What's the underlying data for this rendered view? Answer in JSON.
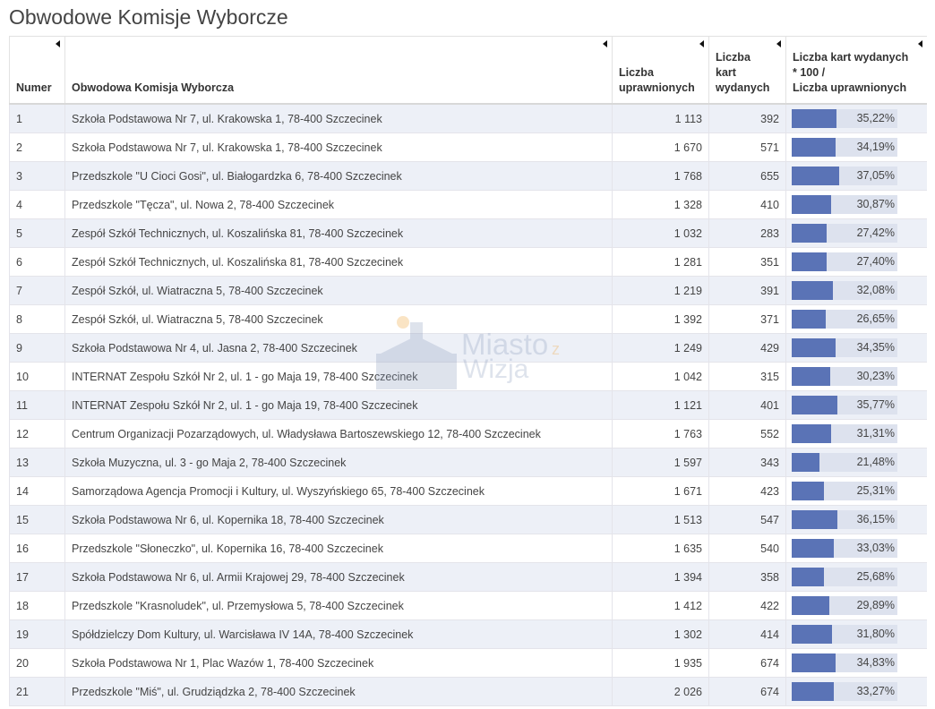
{
  "page": {
    "title": "Obwodowe Komisje Wyborcze"
  },
  "table": {
    "headers": {
      "numer": "Numer",
      "komisja": "Obwodowa Komisja Wyborcza",
      "uprawnionych": [
        "Liczba",
        "uprawnionych"
      ],
      "wydanych": [
        "Liczba",
        "kart",
        "wydanych"
      ],
      "frekwencja": [
        "Liczba kart wydanych",
        "* 100 /",
        "Liczba uprawnionych"
      ]
    },
    "rows": [
      {
        "numer": "1",
        "komisja": "Szkoła Podstawowa Nr 7, ul. Krakowska 1, 78-400 Szczecinek",
        "uprawnionych": "1 113",
        "wydanych": "392",
        "frekwencja": "35,22%",
        "pct": 35.22
      },
      {
        "numer": "2",
        "komisja": "Szkoła Podstawowa Nr 7, ul. Krakowska 1, 78-400 Szczecinek",
        "uprawnionych": "1 670",
        "wydanych": "571",
        "frekwencja": "34,19%",
        "pct": 34.19
      },
      {
        "numer": "3",
        "komisja": "Przedszkole \"U Cioci Gosi\", ul. Białogardzka 6, 78-400 Szczecinek",
        "uprawnionych": "1 768",
        "wydanych": "655",
        "frekwencja": "37,05%",
        "pct": 37.05
      },
      {
        "numer": "4",
        "komisja": "Przedszkole \"Tęcza\", ul. Nowa 2, 78-400 Szczecinek",
        "uprawnionych": "1 328",
        "wydanych": "410",
        "frekwencja": "30,87%",
        "pct": 30.87
      },
      {
        "numer": "5",
        "komisja": "Zespół Szkół Technicznych, ul. Koszalińska 81, 78-400 Szczecinek",
        "uprawnionych": "1 032",
        "wydanych": "283",
        "frekwencja": "27,42%",
        "pct": 27.42
      },
      {
        "numer": "6",
        "komisja": "Zespół Szkół Technicznych, ul. Koszalińska 81, 78-400 Szczecinek",
        "uprawnionych": "1 281",
        "wydanych": "351",
        "frekwencja": "27,40%",
        "pct": 27.4
      },
      {
        "numer": "7",
        "komisja": "Zespół Szkół, ul. Wiatraczna 5, 78-400 Szczecinek",
        "uprawnionych": "1 219",
        "wydanych": "391",
        "frekwencja": "32,08%",
        "pct": 32.08
      },
      {
        "numer": "8",
        "komisja": "Zespół Szkół, ul. Wiatraczna 5, 78-400 Szczecinek",
        "uprawnionych": "1 392",
        "wydanych": "371",
        "frekwencja": "26,65%",
        "pct": 26.65
      },
      {
        "numer": "9",
        "komisja": "Szkoła Podstawowa Nr 4, ul. Jasna 2, 78-400 Szczecinek",
        "uprawnionych": "1 249",
        "wydanych": "429",
        "frekwencja": "34,35%",
        "pct": 34.35
      },
      {
        "numer": "10",
        "komisja": "INTERNAT Zespołu Szkół Nr 2, ul. 1 - go Maja 19, 78-400 Szczecinek",
        "uprawnionych": "1 042",
        "wydanych": "315",
        "frekwencja": "30,23%",
        "pct": 30.23
      },
      {
        "numer": "11",
        "komisja": "INTERNAT Zespołu Szkół Nr 2, ul. 1 - go Maja 19, 78-400 Szczecinek",
        "uprawnionych": "1 121",
        "wydanych": "401",
        "frekwencja": "35,77%",
        "pct": 35.77
      },
      {
        "numer": "12",
        "komisja": "Centrum Organizacji Pozarządowych, ul. Władysława Bartoszewskiego 12, 78-400 Szczecinek",
        "uprawnionych": "1 763",
        "wydanych": "552",
        "frekwencja": "31,31%",
        "pct": 31.31
      },
      {
        "numer": "13",
        "komisja": "Szkoła Muzyczna, ul. 3 - go Maja 2, 78-400 Szczecinek",
        "uprawnionych": "1 597",
        "wydanych": "343",
        "frekwencja": "21,48%",
        "pct": 21.48
      },
      {
        "numer": "14",
        "komisja": "Samorządowa Agencja Promocji i Kultury, ul. Wyszyńskiego 65, 78-400 Szczecinek",
        "uprawnionych": "1 671",
        "wydanych": "423",
        "frekwencja": "25,31%",
        "pct": 25.31
      },
      {
        "numer": "15",
        "komisja": "Szkoła Podstawowa Nr 6, ul. Kopernika 18, 78-400 Szczecinek",
        "uprawnionych": "1 513",
        "wydanych": "547",
        "frekwencja": "36,15%",
        "pct": 36.15
      },
      {
        "numer": "16",
        "komisja": "Przedszkole \"Słoneczko\", ul. Kopernika 16, 78-400 Szczecinek",
        "uprawnionych": "1 635",
        "wydanych": "540",
        "frekwencja": "33,03%",
        "pct": 33.03
      },
      {
        "numer": "17",
        "komisja": "Szkoła Podstawowa Nr 6, ul. Armii Krajowej 29, 78-400 Szczecinek",
        "uprawnionych": "1 394",
        "wydanych": "358",
        "frekwencja": "25,68%",
        "pct": 25.68
      },
      {
        "numer": "18",
        "komisja": "Przedszkole \"Krasnoludek\", ul. Przemysłowa 5, 78-400 Szczecinek",
        "uprawnionych": "1 412",
        "wydanych": "422",
        "frekwencja": "29,89%",
        "pct": 29.89
      },
      {
        "numer": "19",
        "komisja": "Spółdzielczy Dom Kultury, ul. Warcisława IV 14A, 78-400 Szczecinek",
        "uprawnionych": "1 302",
        "wydanych": "414",
        "frekwencja": "31,80%",
        "pct": 31.8
      },
      {
        "numer": "20",
        "komisja": "Szkoła Podstawowa Nr 1, Plac Wazów 1, 78-400 Szczecinek",
        "uprawnionych": "1 935",
        "wydanych": "674",
        "frekwencja": "34,83%",
        "pct": 34.83
      },
      {
        "numer": "21",
        "komisja": "Przedszkole \"Miś\", ul. Grudziądzka 2, 78-400 Szczecinek",
        "uprawnionych": "2 026",
        "wydanych": "674",
        "frekwencja": "33,27%",
        "pct": 33.27
      }
    ]
  },
  "watermark": {
    "line1": "Miasto",
    "line2": "Wizja",
    "z": "z"
  },
  "colors": {
    "bar_fill": "#5a73b6",
    "bar_track": "#dde2ee",
    "row_stripe": "#edf0f7"
  }
}
